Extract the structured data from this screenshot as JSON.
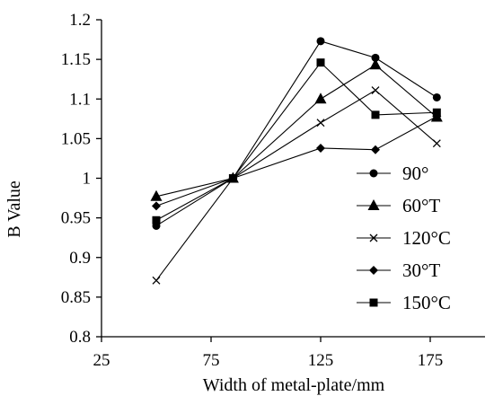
{
  "chart_data": {
    "type": "line",
    "title": "",
    "xlabel": "Width of metal-plate/mm",
    "ylabel": "B Value",
    "xlim": [
      25,
      200
    ],
    "ylim": [
      0.8,
      1.2
    ],
    "x_ticks": [
      "25",
      "75",
      "125",
      "175"
    ],
    "y_ticks": [
      "0.8",
      "0.85",
      "0.9",
      "0.95",
      "1",
      "1.05",
      "1.1",
      "1.15",
      "1.2"
    ],
    "grid": false,
    "legend_position": "right",
    "series": [
      {
        "name": "90°",
        "marker": "circle",
        "color": "#000000",
        "x": [
          50,
          85,
          125,
          150,
          178
        ],
        "y": [
          0.94,
          1.0,
          1.173,
          1.152,
          1.102
        ]
      },
      {
        "name": "60°T",
        "marker": "triangle",
        "color": "#000000",
        "x": [
          50,
          85,
          125,
          150,
          178
        ],
        "y": [
          0.977,
          1.0,
          1.1,
          1.143,
          1.077
        ]
      },
      {
        "name": "120°C",
        "marker": "x",
        "color": "#000000",
        "x": [
          50,
          85,
          125,
          150,
          178
        ],
        "y": [
          0.871,
          1.0,
          1.07,
          1.111,
          1.044
        ]
      },
      {
        "name": "30°T",
        "marker": "diamond",
        "color": "#000000",
        "x": [
          50,
          85,
          125,
          150,
          178
        ],
        "y": [
          0.965,
          1.0,
          1.038,
          1.036,
          1.078
        ]
      },
      {
        "name": "150°C",
        "marker": "square",
        "color": "#000000",
        "x": [
          50,
          85,
          125,
          150,
          178
        ],
        "y": [
          0.947,
          1.0,
          1.146,
          1.08,
          1.083
        ]
      }
    ]
  }
}
